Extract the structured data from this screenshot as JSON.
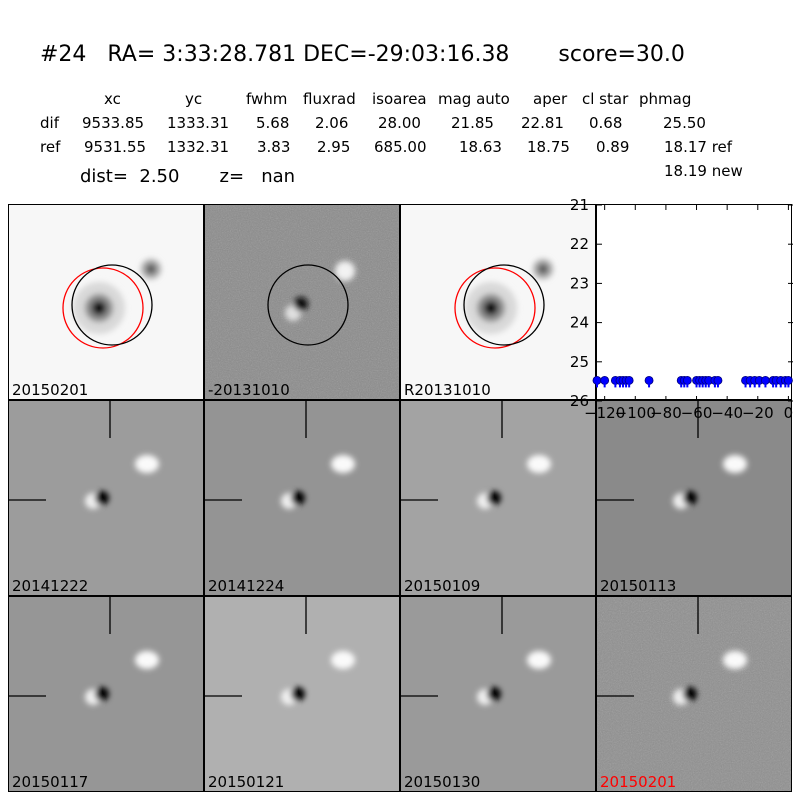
{
  "header": {
    "title": "#24   RA= 3:33:28.781 DEC=-29:03:16.38       score=30.0",
    "columns": [
      "xc",
      "yc",
      "fwhm",
      "fluxrad",
      "isoarea",
      "mag auto",
      "aper",
      "cl star",
      "phmag"
    ],
    "rows": [
      {
        "name": "dif",
        "values": [
          "9533.85",
          "1333.31",
          "5.68",
          "2.06",
          "28.00",
          "21.85",
          "22.81",
          "0.68",
          "25.50"
        ]
      },
      {
        "name": "ref",
        "values": [
          "9531.55",
          "1332.31",
          "3.83",
          "2.95",
          "685.00",
          "18.63",
          "18.75",
          "0.89",
          "18.17 ref"
        ]
      }
    ],
    "dist_line": "dist=  2.50       z=   nan",
    "new_mag": "18.19 new"
  },
  "panels": [
    {
      "label": "20150201",
      "style": "ref"
    },
    {
      "label": "-20131010",
      "style": "diff"
    },
    {
      "label": "R20131010",
      "style": "ref"
    },
    {
      "label": "20141222",
      "style": "stamp"
    },
    {
      "label": "20141224",
      "style": "stamp"
    },
    {
      "label": "20150109",
      "style": "stamp"
    },
    {
      "label": "20150113",
      "style": "stamp"
    },
    {
      "label": "20150117",
      "style": "stamp"
    },
    {
      "label": "20150121",
      "style": "stamp"
    },
    {
      "label": "20150130",
      "style": "stamp"
    },
    {
      "label": "20150201",
      "style": "stamp",
      "highlight_color": "#ff0000"
    }
  ],
  "colors": {
    "marker": "#0000ff",
    "circle_red": "#ff0000",
    "circle_black": "#000000"
  },
  "chart_data": {
    "type": "scatter",
    "xlim": [
      -125,
      3
    ],
    "ylim": [
      26,
      21
    ],
    "y_inverted": true,
    "xticks": [
      "-120",
      "-100",
      "-80",
      "-60",
      "-40",
      "-20",
      "0"
    ],
    "yticks": [
      "21",
      "22",
      "23",
      "24",
      "25",
      "26"
    ],
    "marker": "circle",
    "x": [
      -125,
      -120,
      -113,
      -110,
      -108,
      -106,
      -104,
      -91,
      -70,
      -68,
      -66,
      -60,
      -58,
      -56,
      -54,
      -52,
      -48,
      -46,
      -28,
      -25,
      -22,
      -19,
      -15,
      -10,
      -8,
      -5,
      -2,
      0
    ],
    "y": [
      25.5,
      25.5,
      25.5,
      25.5,
      25.5,
      25.5,
      25.5,
      25.5,
      25.5,
      25.5,
      25.5,
      25.5,
      25.5,
      25.5,
      25.5,
      25.5,
      25.5,
      25.5,
      25.5,
      25.5,
      25.5,
      25.5,
      25.5,
      25.5,
      25.5,
      25.5,
      25.5,
      25.5
    ],
    "xlabel": "",
    "ylabel": ""
  }
}
